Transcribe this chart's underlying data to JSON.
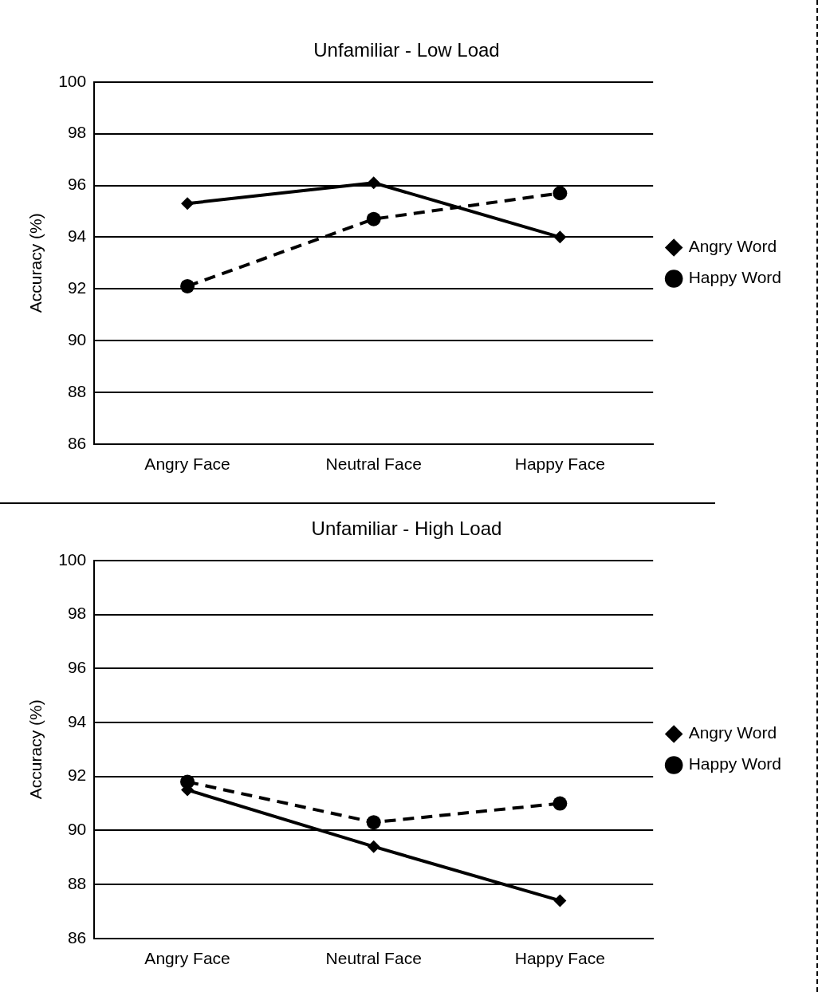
{
  "chart_data": [
    {
      "type": "line",
      "title": "Unfamiliar - Low Load",
      "ylabel": "Accuracy (%)",
      "categories": [
        "Angry Face",
        "Neutral Face",
        "Happy Face"
      ],
      "series": [
        {
          "name": "Angry Word",
          "color": "#000000",
          "marker": "diamond",
          "line_style": "solid",
          "values": [
            95.3,
            96.1,
            94.0
          ]
        },
        {
          "name": "Happy Word",
          "color": "#000000",
          "marker": "circle",
          "line_style": "dashed",
          "values": [
            92.1,
            94.7,
            95.7
          ]
        }
      ],
      "ylim": [
        86,
        100
      ],
      "yticks": [
        86,
        88,
        90,
        92,
        94,
        96,
        98,
        100
      ],
      "grid": "y",
      "legend": "right"
    },
    {
      "type": "line",
      "title": "Unfamiliar - High Load",
      "ylabel": "Accuracy (%)",
      "categories": [
        "Angry Face",
        "Neutral Face",
        "Happy Face"
      ],
      "series": [
        {
          "name": "Angry Word",
          "color": "#000000",
          "marker": "diamond",
          "line_style": "solid",
          "values": [
            91.5,
            89.4,
            87.4
          ]
        },
        {
          "name": "Happy Word",
          "color": "#000000",
          "marker": "circle",
          "line_style": "dashed",
          "values": [
            91.8,
            90.3,
            91.0
          ]
        }
      ],
      "ylim": [
        86,
        100
      ],
      "yticks": [
        86,
        88,
        90,
        92,
        94,
        96,
        98,
        100
      ],
      "grid": "y",
      "legend": "right"
    }
  ]
}
